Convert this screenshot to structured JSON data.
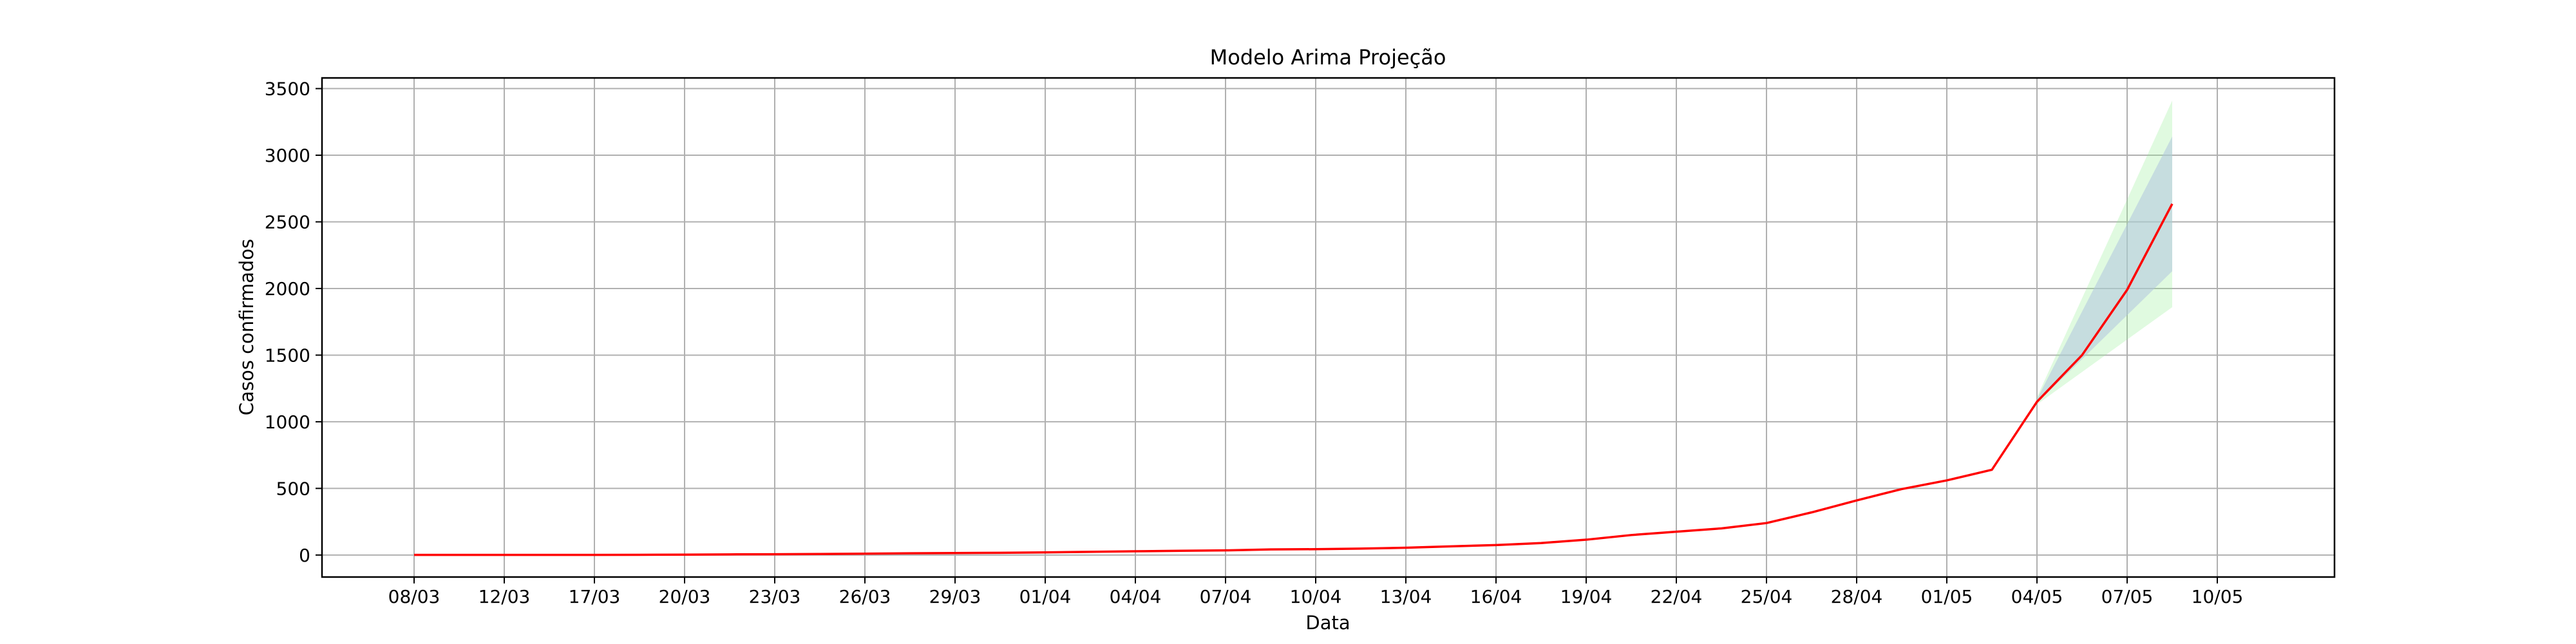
{
  "chart_data": {
    "type": "line",
    "title": "Modelo Arima Projeção",
    "xlabel": "Data",
    "ylabel": "Casos confirmados",
    "x_tick_labels": [
      "08/03",
      "12/03",
      "17/03",
      "20/03",
      "23/03",
      "26/03",
      "29/03",
      "01/04",
      "04/04",
      "07/04",
      "10/04",
      "13/04",
      "16/04",
      "19/04",
      "22/04",
      "25/04",
      "28/04",
      "01/05",
      "04/05",
      "07/05",
      "10/05"
    ],
    "yticks": [
      0,
      500,
      1000,
      1500,
      2000,
      2500,
      3000,
      3500
    ],
    "ylim": [
      -165,
      3580
    ],
    "grid": true,
    "colors": {
      "line": "#ff0000",
      "inner_band": "#b0c4de",
      "outer_band": "#90ee90",
      "grid": "#b0b0b0",
      "axes": "#000000"
    },
    "series": [
      {
        "values": [
          {
            "x": 0,
            "y": 1
          },
          {
            "x": 1,
            "y": 1
          },
          {
            "x": 2,
            "y": 1
          },
          {
            "x": 3,
            "y": 1
          },
          {
            "x": 4,
            "y": 1
          },
          {
            "x": 5,
            "y": 2
          },
          {
            "x": 6,
            "y": 3
          },
          {
            "x": 7,
            "y": 5
          },
          {
            "x": 8,
            "y": 6
          },
          {
            "x": 9,
            "y": 8
          },
          {
            "x": 10,
            "y": 10
          },
          {
            "x": 11,
            "y": 13
          },
          {
            "x": 12,
            "y": 15
          },
          {
            "x": 13,
            "y": 17
          },
          {
            "x": 14,
            "y": 20
          },
          {
            "x": 15,
            "y": 24
          },
          {
            "x": 16,
            "y": 28
          },
          {
            "x": 17,
            "y": 32
          },
          {
            "x": 18,
            "y": 35
          },
          {
            "x": 19,
            "y": 42
          },
          {
            "x": 20,
            "y": 44
          },
          {
            "x": 21,
            "y": 48
          },
          {
            "x": 22,
            "y": 55
          },
          {
            "x": 23,
            "y": 65
          },
          {
            "x": 24,
            "y": 75
          },
          {
            "x": 25,
            "y": 90
          },
          {
            "x": 26,
            "y": 115
          },
          {
            "x": 27,
            "y": 150
          },
          {
            "x": 28,
            "y": 175
          },
          {
            "x": 29,
            "y": 200
          },
          {
            "x": 30,
            "y": 240
          },
          {
            "x": 31,
            "y": 320
          },
          {
            "x": 32,
            "y": 410
          },
          {
            "x": 33,
            "y": 495
          },
          {
            "x": 34,
            "y": 560
          },
          {
            "x": 35,
            "y": 640
          },
          {
            "x": 36,
            "y": 1150
          },
          {
            "x": 37,
            "y": 1500
          },
          {
            "x": 38,
            "y": 1990
          },
          {
            "x": 39,
            "y": 2635
          }
        ]
      }
    ],
    "confidence_bands": [
      {
        "level": "outer",
        "x": [
          36,
          39
        ],
        "lower": [
          1130,
          1860
        ],
        "upper": [
          1185,
          3410
        ]
      },
      {
        "level": "inner",
        "x": [
          36,
          39
        ],
        "lower": [
          1140,
          2130
        ],
        "upper": [
          1170,
          3140
        ]
      }
    ]
  }
}
